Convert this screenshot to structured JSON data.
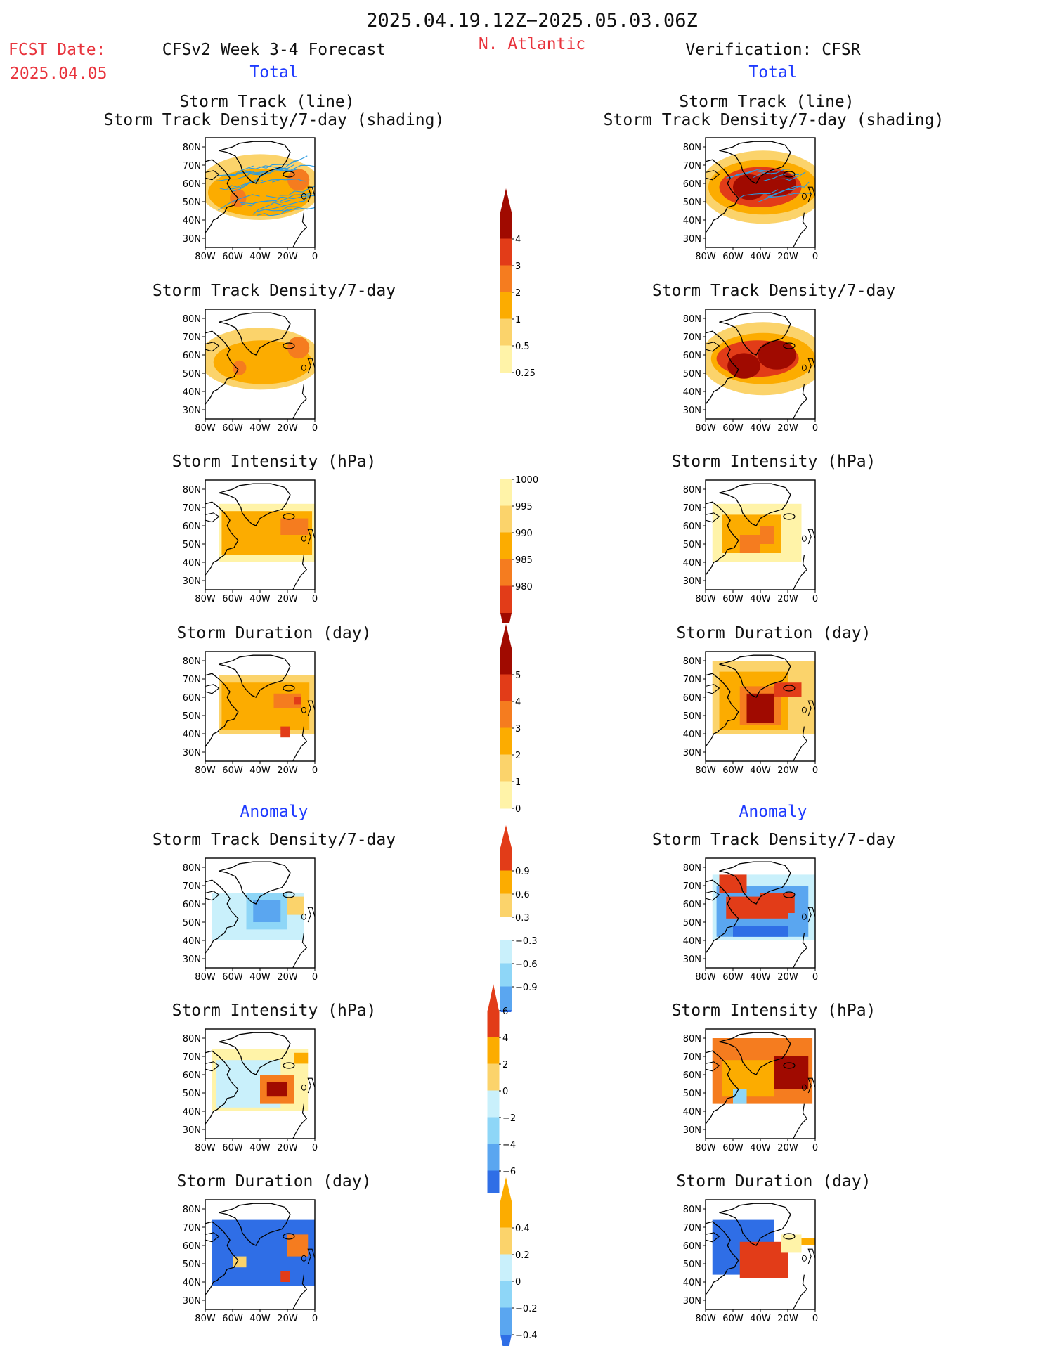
{
  "header": {
    "date_range": "2025.04.19.12Z−2025.05.03.06Z",
    "region": "N. Atlantic",
    "fcst_label": "FCST Date:",
    "fcst_date": "2025.04.05",
    "left_title": "CFSv2 Week 3-4 Forecast",
    "right_title": "Verification: CFSR",
    "total_left": "Total",
    "total_right": "Total",
    "anomaly_left": "Anomaly",
    "anomaly_right": "Anomaly"
  },
  "colors": {
    "accent_red": "#e8333c",
    "accent_blue": "#1f3bff",
    "track_line": "#2b9be0"
  },
  "axes": {
    "lat_ticks": [
      "80N",
      "70N",
      "60N",
      "50N",
      "40N",
      "30N"
    ],
    "lon_ticks": [
      "80W",
      "60W",
      "40W",
      "20W",
      "0"
    ]
  },
  "panels": {
    "total_track": {
      "title1": "Storm Track (line)",
      "title2": "Storm Track Density/7-day (shading)"
    },
    "total_density": {
      "title": "Storm Track Density/7-day"
    },
    "total_intensity": {
      "title": "Storm Intensity (hPa)"
    },
    "total_duration": {
      "title": "Storm Duration (day)"
    },
    "anom_density": {
      "title": "Storm Track Density/7-day"
    },
    "anom_intensity": {
      "title": "Storm Intensity (hPa)"
    },
    "anom_duration": {
      "title": "Storm Duration (day)"
    }
  },
  "colorbars": {
    "density": {
      "labels": [
        "4",
        "3",
        "2",
        "1",
        "0.5",
        "0.25"
      ]
    },
    "intensity": {
      "labels": [
        "1000",
        "995",
        "990",
        "985",
        "980"
      ]
    },
    "duration": {
      "labels": [
        "5",
        "4",
        "3",
        "2",
        "1",
        "0"
      ]
    },
    "anom_density": {
      "labels": [
        "0.9",
        "0.6",
        "0.3",
        "−0.3",
        "−0.6",
        "−0.9"
      ]
    },
    "anom_intensity": {
      "labels": [
        "6",
        "4",
        "2",
        "0",
        "−2",
        "−4",
        "−6"
      ]
    },
    "anom_duration": {
      "labels": [
        "0.4",
        "0.2",
        "0",
        "−0.2",
        "−0.4"
      ]
    }
  },
  "chart_data": [
    {
      "type": "heatmap",
      "title": "Storm Track (line) / Storm Track Density/7-day (shading)",
      "source": "CFSv2 Week 3-4 Forecast",
      "xlabel": "",
      "ylabel": "",
      "xlim": [
        -80,
        0
      ],
      "ylim": [
        25,
        85
      ],
      "scale_levels": [
        0.25,
        0.5,
        1,
        2,
        3,
        4
      ]
    },
    {
      "type": "heatmap",
      "title": "Storm Track (line) / Storm Track Density/7-day (shading)",
      "source": "Verification: CFSR",
      "xlabel": "",
      "ylabel": "",
      "xlim": [
        -80,
        0
      ],
      "ylim": [
        25,
        85
      ],
      "scale_levels": [
        0.25,
        0.5,
        1,
        2,
        3,
        4
      ]
    },
    {
      "type": "heatmap",
      "title": "Storm Track Density/7-day",
      "source": "CFSv2 Week 3-4 Forecast",
      "xlim": [
        -80,
        0
      ],
      "ylim": [
        25,
        85
      ],
      "scale_levels": [
        0.25,
        0.5,
        1,
        2,
        3,
        4
      ]
    },
    {
      "type": "heatmap",
      "title": "Storm Track Density/7-day",
      "source": "Verification: CFSR",
      "xlim": [
        -80,
        0
      ],
      "ylim": [
        25,
        85
      ],
      "scale_levels": [
        0.25,
        0.5,
        1,
        2,
        3,
        4
      ]
    },
    {
      "type": "heatmap",
      "title": "Storm Intensity (hPa)",
      "source": "CFSv2 Week 3-4 Forecast",
      "xlim": [
        -80,
        0
      ],
      "ylim": [
        25,
        85
      ],
      "scale_levels": [
        1000,
        995,
        990,
        985,
        980
      ]
    },
    {
      "type": "heatmap",
      "title": "Storm Intensity (hPa)",
      "source": "Verification: CFSR",
      "xlim": [
        -80,
        0
      ],
      "ylim": [
        25,
        85
      ],
      "scale_levels": [
        1000,
        995,
        990,
        985,
        980
      ]
    },
    {
      "type": "heatmap",
      "title": "Storm Duration (day)",
      "source": "CFSv2 Week 3-4 Forecast",
      "xlim": [
        -80,
        0
      ],
      "ylim": [
        25,
        85
      ],
      "scale_levels": [
        0,
        1,
        2,
        3,
        4,
        5
      ]
    },
    {
      "type": "heatmap",
      "title": "Storm Duration (day)",
      "source": "Verification: CFSR",
      "xlim": [
        -80,
        0
      ],
      "ylim": [
        25,
        85
      ],
      "scale_levels": [
        0,
        1,
        2,
        3,
        4,
        5
      ]
    },
    {
      "type": "heatmap",
      "title": "Anomaly Storm Track Density/7-day",
      "source": "CFSv2 Week 3-4 Forecast",
      "xlim": [
        -80,
        0
      ],
      "ylim": [
        25,
        85
      ],
      "scale_levels": [
        -0.9,
        -0.6,
        -0.3,
        0.3,
        0.6,
        0.9
      ]
    },
    {
      "type": "heatmap",
      "title": "Anomaly Storm Track Density/7-day",
      "source": "Verification: CFSR",
      "xlim": [
        -80,
        0
      ],
      "ylim": [
        25,
        85
      ],
      "scale_levels": [
        -0.9,
        -0.6,
        -0.3,
        0.3,
        0.6,
        0.9
      ]
    },
    {
      "type": "heatmap",
      "title": "Anomaly Storm Intensity (hPa)",
      "source": "CFSv2 Week 3-4 Forecast",
      "xlim": [
        -80,
        0
      ],
      "ylim": [
        25,
        85
      ],
      "scale_levels": [
        -6,
        -4,
        -2,
        0,
        2,
        4,
        6
      ]
    },
    {
      "type": "heatmap",
      "title": "Anomaly Storm Intensity (hPa)",
      "source": "Verification: CFSR",
      "xlim": [
        -80,
        0
      ],
      "ylim": [
        25,
        85
      ],
      "scale_levels": [
        -6,
        -4,
        -2,
        0,
        2,
        4,
        6
      ]
    },
    {
      "type": "heatmap",
      "title": "Anomaly Storm Duration (day)",
      "source": "CFSv2 Week 3-4 Forecast",
      "xlim": [
        -80,
        0
      ],
      "ylim": [
        25,
        85
      ],
      "scale_levels": [
        -0.4,
        -0.2,
        0,
        0.2,
        0.4
      ]
    },
    {
      "type": "heatmap",
      "title": "Anomaly Storm Duration (day)",
      "source": "Verification: CFSR",
      "xlim": [
        -80,
        0
      ],
      "ylim": [
        25,
        85
      ],
      "scale_levels": [
        -0.4,
        -0.2,
        0,
        0.2,
        0.4
      ]
    }
  ]
}
